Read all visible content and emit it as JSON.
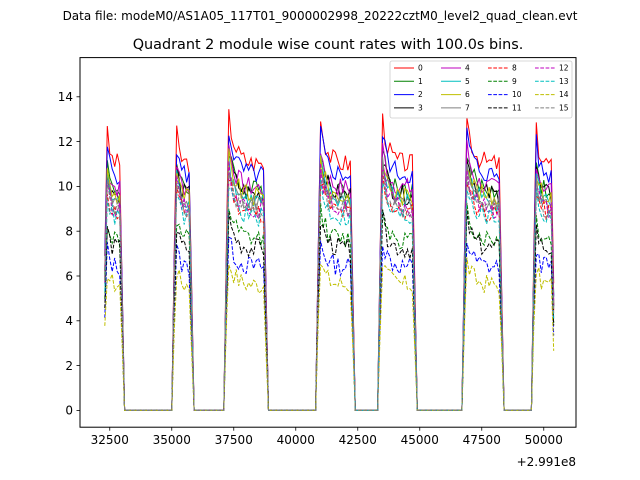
{
  "chart_data": {
    "type": "line",
    "suptitle": "Data file: modeM0/AS1A05_117T01_9000002998_20222cztM0_level2_quad_clean.evt",
    "title": "Quadrant 2 module wise count rates with 100.0s bins.",
    "xlabel": "",
    "ylabel": "",
    "x_offset_label": "+2.991e8",
    "xlim": [
      31300,
      51300
    ],
    "ylim": [
      -0.75,
      15.75
    ],
    "x_ticks": [
      32500,
      35000,
      37500,
      40000,
      42500,
      45000,
      47500,
      50000
    ],
    "x_tick_labels": [
      "32500",
      "35000",
      "37500",
      "40000",
      "42500",
      "45000",
      "47500",
      "50000"
    ],
    "y_ticks": [
      0,
      2,
      4,
      6,
      8,
      10,
      12,
      14
    ],
    "y_tick_labels": [
      "0",
      "2",
      "4",
      "6",
      "8",
      "10",
      "12",
      "14"
    ],
    "grid": false,
    "legend_position": "top-right",
    "segments": [
      [
        32300,
        33000
      ],
      [
        35100,
        35800
      ],
      [
        37200,
        38800
      ],
      [
        40900,
        42300
      ],
      [
        43400,
        44800
      ],
      [
        46800,
        48300
      ],
      [
        49600,
        50400
      ]
    ],
    "series": [
      {
        "name": "0",
        "color": "#ff0000",
        "dash": "solid",
        "level": 11.0
      },
      {
        "name": "1",
        "color": "#008000",
        "dash": "solid",
        "level": 9.8
      },
      {
        "name": "2",
        "color": "#0000ff",
        "dash": "solid",
        "level": 10.5
      },
      {
        "name": "3",
        "color": "#000000",
        "dash": "solid",
        "level": 9.6
      },
      {
        "name": "4",
        "color": "#bf00bf",
        "dash": "solid",
        "level": 9.9
      },
      {
        "name": "5",
        "color": "#00bfbf",
        "dash": "solid",
        "level": 9.3
      },
      {
        "name": "6",
        "color": "#bfbf00",
        "dash": "solid",
        "level": 9.5
      },
      {
        "name": "7",
        "color": "#808080",
        "dash": "solid",
        "level": 9.2
      },
      {
        "name": "8",
        "color": "#ff0000",
        "dash": "dashed",
        "level": 8.8
      },
      {
        "name": "9",
        "color": "#008000",
        "dash": "dashed",
        "level": 7.6
      },
      {
        "name": "10",
        "color": "#0000ff",
        "dash": "dashed",
        "level": 6.4
      },
      {
        "name": "11",
        "color": "#000000",
        "dash": "dashed",
        "level": 7.2
      },
      {
        "name": "12",
        "color": "#bf00bf",
        "dash": "dashed",
        "level": 9.0
      },
      {
        "name": "13",
        "color": "#00bfbf",
        "dash": "dashed",
        "level": 8.6
      },
      {
        "name": "14",
        "color": "#bfbf00",
        "dash": "dashed",
        "level": 5.6
      },
      {
        "name": "15",
        "color": "#808080",
        "dash": "dashed",
        "level": 8.9
      }
    ]
  }
}
